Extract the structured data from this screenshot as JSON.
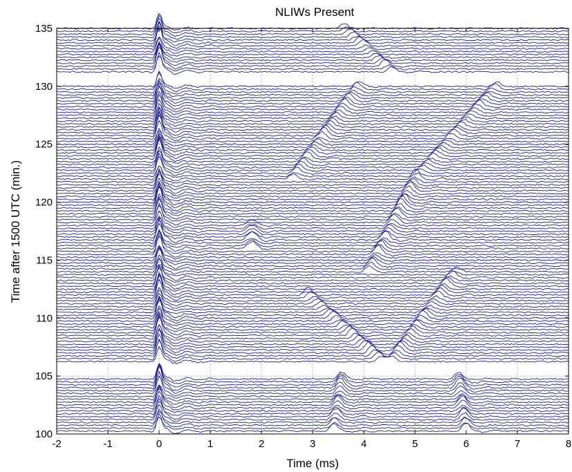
{
  "chart_data": {
    "type": "line",
    "title": "NLIWs Present",
    "xlabel": "Time (ms)",
    "ylabel": "Time after 1500 UTC (min.)",
    "xlim": [
      -2,
      8
    ],
    "ylim": [
      100,
      135
    ],
    "xticks": [
      -2,
      -1,
      0,
      1,
      2,
      3,
      4,
      5,
      6,
      7,
      8
    ],
    "yticks": [
      100,
      105,
      110,
      115,
      120,
      125,
      130,
      135
    ],
    "grid": true,
    "trace_spacing_min": 0.25,
    "gaps_min": [
      [
        104.75,
        106.25
      ],
      [
        130,
        131.25
      ]
    ],
    "series_color": "#1a1f8a",
    "arrivals": [
      {
        "y_from": 100,
        "y_to": 135,
        "x_from": 0.0,
        "x_to": 0.0,
        "amp": 1.4,
        "width": 0.08
      },
      {
        "y_from": 100,
        "y_to": 106,
        "x_from": 3.4,
        "x_to": 3.6,
        "amp": 0.6,
        "width": 0.12
      },
      {
        "y_from": 100,
        "y_to": 106,
        "x_from": 6.0,
        "x_to": 5.8,
        "amp": 0.6,
        "width": 0.12
      },
      {
        "y_from": 106,
        "y_to": 112,
        "x_from": 4.4,
        "x_to": 2.9,
        "amp": 0.5,
        "width": 0.12
      },
      {
        "y_from": 106,
        "y_to": 114,
        "x_from": 4.5,
        "x_to": 5.8,
        "amp": 0.5,
        "width": 0.12
      },
      {
        "y_from": 114,
        "y_to": 122,
        "x_from": 4.1,
        "x_to": 5.0,
        "amp": 0.6,
        "width": 0.12
      },
      {
        "y_from": 116,
        "y_to": 118,
        "x_from": 1.8,
        "x_to": 1.8,
        "amp": 0.5,
        "width": 0.15
      },
      {
        "y_from": 122,
        "y_to": 130,
        "x_from": 2.6,
        "x_to": 3.9,
        "amp": 0.5,
        "width": 0.12
      },
      {
        "y_from": 122,
        "y_to": 130,
        "x_from": 5.0,
        "x_to": 6.6,
        "amp": 0.4,
        "width": 0.12
      },
      {
        "y_from": 131,
        "y_to": 135,
        "x_from": 4.6,
        "x_to": 3.6,
        "amp": 0.4,
        "width": 0.12
      }
    ]
  }
}
